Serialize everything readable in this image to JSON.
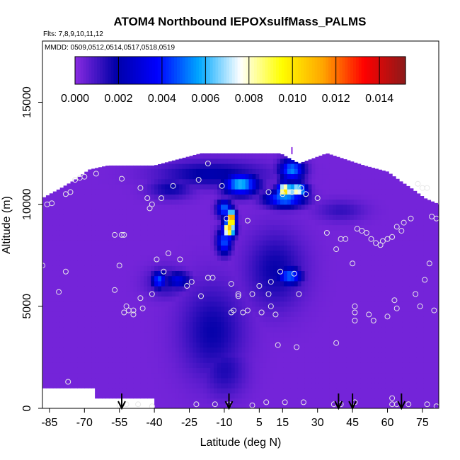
{
  "chart_data": {
    "type": "heatmap",
    "title": "ATOM4 Northbound IEPOXsulfMass_PALMS",
    "subtitle_flights": "Flts: 7,8,9,10,11,12",
    "subtitle_dates": "MMDD: 0509,0512,0514,0517,0518,0519",
    "xlabel": "Latitude (deg N)",
    "ylabel": "Altitude (m)",
    "xlim": [
      -88,
      82
    ],
    "ylim": [
      0,
      18000
    ],
    "xticks": [
      "-85",
      "-70",
      "-55",
      "-40",
      "-25",
      "-10",
      "5",
      "15",
      "30",
      "45",
      "60",
      "75"
    ],
    "xtick_values": [
      -85,
      -70,
      -55,
      -40,
      -25,
      -10,
      5,
      15,
      30,
      45,
      60,
      75
    ],
    "yticks": [
      "0",
      "5000",
      "10000",
      "15000"
    ],
    "ytick_values": [
      0,
      5000,
      10000,
      15000
    ],
    "colorbar": {
      "ticks": [
        "0.000",
        "0.002",
        "0.004",
        "0.006",
        "0.008",
        "0.010",
        "0.012",
        "0.014"
      ],
      "tick_values": [
        0.0,
        0.002,
        0.004,
        0.006,
        0.008,
        0.01,
        0.012,
        0.014
      ],
      "range": [
        0.0,
        0.0152
      ],
      "colors": [
        "#8a2be2",
        "#0000a8",
        "#0000ff",
        "#00a8ff",
        "#ffffff",
        "#ffff00",
        "#ffa500",
        "#ff0000",
        "#8b1a1a"
      ]
    },
    "background_value": 0.0003,
    "domain": [
      {
        "lat": -88,
        "top": 10300
      },
      {
        "lat": -80,
        "top": 10800
      },
      {
        "lat": -74,
        "top": 11200
      },
      {
        "lat": -68,
        "top": 11700
      },
      {
        "lat": -60,
        "top": 11900
      },
      {
        "lat": -40,
        "top": 11900
      },
      {
        "lat": -20,
        "top": 12500
      },
      {
        "lat": 14,
        "top": 12500
      },
      {
        "lat": 22,
        "top": 12000
      },
      {
        "lat": 34,
        "top": 12500
      },
      {
        "lat": 50,
        "top": 11900
      },
      {
        "lat": 60,
        "top": 11600
      },
      {
        "lat": 66,
        "top": 11100
      },
      {
        "lat": 70,
        "top": 10800
      },
      {
        "lat": 76,
        "top": 10300
      },
      {
        "lat": 82,
        "top": 10000
      }
    ],
    "domain_bottom": [
      {
        "lat": -88,
        "alt": 1000
      },
      {
        "lat": -66,
        "alt": 1000
      },
      {
        "lat": -66,
        "alt": 500
      },
      {
        "lat": -40,
        "alt": 500
      },
      {
        "lat": -40,
        "alt": 0
      },
      {
        "lat": 82,
        "alt": 0
      }
    ],
    "features": [
      {
        "lat": -15,
        "alt": 3800,
        "w_lat": 13,
        "h_alt": 2200,
        "value": 0.0018
      },
      {
        "lat": -10,
        "alt": 1900,
        "w_lat": 9,
        "h_alt": 1300,
        "value": 0.0015
      },
      {
        "lat": -15,
        "alt": 11500,
        "w_lat": 22,
        "h_alt": 600,
        "value": 0.0021
      },
      {
        "lat": -33,
        "alt": 10800,
        "w_lat": 9,
        "h_alt": 500,
        "value": 0.0018
      },
      {
        "lat": -3,
        "alt": 11000,
        "w_lat": 7,
        "h_alt": 500,
        "value": 0.0062
      },
      {
        "lat": 19,
        "alt": 11700,
        "w_lat": 5,
        "h_alt": 500,
        "value": 0.0054
      },
      {
        "lat": 16,
        "alt": 10700,
        "w_lat": 3,
        "h_alt": 350,
        "value": 0.0105
      },
      {
        "lat": 21,
        "alt": 10700,
        "w_lat": 4,
        "h_alt": 350,
        "value": 0.0085
      },
      {
        "lat": 16,
        "alt": 10300,
        "w_lat": 8,
        "h_alt": 400,
        "value": 0.0056
      },
      {
        "lat": -7,
        "alt": 9300,
        "w_lat": 1.8,
        "h_alt": 400,
        "value": 0.0138
      },
      {
        "lat": -8,
        "alt": 8800,
        "w_lat": 2.5,
        "h_alt": 400,
        "value": 0.0112
      },
      {
        "lat": -10,
        "alt": 8200,
        "w_lat": 3,
        "h_alt": 600,
        "value": 0.0048
      },
      {
        "lat": -10,
        "alt": 9800,
        "w_lat": 3,
        "h_alt": 400,
        "value": 0.0052
      },
      {
        "lat": 12,
        "alt": 6800,
        "w_lat": 12,
        "h_alt": 1800,
        "value": 0.0018
      },
      {
        "lat": 18,
        "alt": 6500,
        "w_lat": 5,
        "h_alt": 400,
        "value": 0.0052
      },
      {
        "lat": 40,
        "alt": 9700,
        "w_lat": 10,
        "h_alt": 500,
        "value": 0.0012
      },
      {
        "lat": -35,
        "alt": 6200,
        "w_lat": 8,
        "h_alt": 700,
        "value": 0.0016
      },
      {
        "lat": -38,
        "alt": 6300,
        "w_lat": 3,
        "h_alt": 400,
        "value": 0.0048
      },
      {
        "lat": -30,
        "alt": 6300,
        "w_lat": 5,
        "h_alt": 400,
        "value": 0.0032
      }
    ],
    "profile_points": [
      {
        "lat": -86,
        "alt": 10000
      },
      {
        "lat": -84,
        "alt": 10050
      },
      {
        "lat": -78,
        "alt": 10500
      },
      {
        "lat": -76,
        "alt": 10600
      },
      {
        "lat": -74,
        "alt": 11200
      },
      {
        "lat": -72,
        "alt": 11300
      },
      {
        "lat": -70,
        "alt": 11350
      },
      {
        "lat": -65,
        "alt": 11500
      },
      {
        "lat": -54,
        "alt": 11250
      },
      {
        "lat": -46,
        "alt": 10800
      },
      {
        "lat": -43,
        "alt": 10300
      },
      {
        "lat": -42,
        "alt": 9800
      },
      {
        "lat": -41,
        "alt": 10000
      },
      {
        "lat": -37,
        "alt": 10300
      },
      {
        "lat": -32,
        "alt": 10900
      },
      {
        "lat": -21,
        "alt": 11200
      },
      {
        "lat": -17,
        "alt": 12000
      },
      {
        "lat": -11,
        "alt": 10900
      },
      {
        "lat": -9,
        "alt": 9300
      },
      {
        "lat": 0,
        "alt": 9200
      },
      {
        "lat": 9,
        "alt": 10600
      },
      {
        "lat": 19,
        "alt": 10600
      },
      {
        "lat": 15,
        "alt": 10500
      },
      {
        "lat": 23,
        "alt": 10800
      },
      {
        "lat": 25,
        "alt": 10500
      },
      {
        "lat": 30,
        "alt": 10300
      },
      {
        "lat": 34,
        "alt": 8600
      },
      {
        "lat": 38,
        "alt": 7800
      },
      {
        "lat": 40,
        "alt": 8300
      },
      {
        "lat": 42,
        "alt": 8300
      },
      {
        "lat": 45,
        "alt": 7100
      },
      {
        "lat": 47,
        "alt": 8800
      },
      {
        "lat": 49,
        "alt": 8700
      },
      {
        "lat": 51,
        "alt": 8600
      },
      {
        "lat": 53,
        "alt": 8300
      },
      {
        "lat": 55,
        "alt": 8100
      },
      {
        "lat": 57,
        "alt": 8000
      },
      {
        "lat": 58,
        "alt": 8200
      },
      {
        "lat": 60,
        "alt": 8300
      },
      {
        "lat": 62,
        "alt": 8400
      },
      {
        "lat": 64,
        "alt": 8900
      },
      {
        "lat": 66,
        "alt": 8700
      },
      {
        "lat": 67,
        "alt": 9100
      },
      {
        "lat": 70,
        "alt": 9300
      },
      {
        "lat": 73,
        "alt": 11000
      },
      {
        "lat": 75,
        "alt": 10800
      },
      {
        "lat": 77,
        "alt": 10800
      },
      {
        "lat": 79,
        "alt": 9400
      },
      {
        "lat": 81,
        "alt": 9300
      },
      {
        "lat": 78,
        "alt": 7100
      },
      {
        "lat": 76,
        "alt": 6300
      },
      {
        "lat": 72,
        "alt": 5600
      },
      {
        "lat": 74,
        "alt": 5000
      },
      {
        "lat": 80,
        "alt": 4800
      },
      {
        "lat": 63,
        "alt": 5300
      },
      {
        "lat": 64,
        "alt": 4900
      },
      {
        "lat": 60,
        "alt": 4500
      },
      {
        "lat": 54,
        "alt": 4300
      },
      {
        "lat": 52,
        "alt": 4600
      },
      {
        "lat": 46,
        "alt": 4300
      },
      {
        "lat": 46,
        "alt": 4700
      },
      {
        "lat": 46,
        "alt": 5000
      },
      {
        "lat": 38,
        "alt": 3200
      },
      {
        "lat": 21,
        "alt": 3000
      },
      {
        "lat": 12,
        "alt": 4600
      },
      {
        "lat": 10,
        "alt": 5000
      },
      {
        "lat": 6,
        "alt": 4700
      },
      {
        "lat": 0,
        "alt": 4800
      },
      {
        "lat": -2,
        "alt": 4700
      },
      {
        "lat": -6,
        "alt": 4800
      },
      {
        "lat": -7,
        "alt": 4700
      },
      {
        "lat": 2,
        "alt": 5600
      },
      {
        "lat": 22,
        "alt": 5600
      },
      {
        "lat": 20,
        "alt": 6600
      },
      {
        "lat": 14,
        "alt": 6700
      },
      {
        "lat": 10,
        "alt": 6200
      },
      {
        "lat": 9,
        "alt": 5600
      },
      {
        "lat": 5,
        "alt": 6000
      },
      {
        "lat": -4,
        "alt": 5600
      },
      {
        "lat": -4,
        "alt": 5500
      },
      {
        "lat": -7,
        "alt": 6100
      },
      {
        "lat": -15,
        "alt": 6400
      },
      {
        "lat": -20,
        "alt": 5500
      },
      {
        "lat": -24,
        "alt": 6200
      },
      {
        "lat": -26,
        "alt": 6000
      },
      {
        "lat": -29,
        "alt": 7300
      },
      {
        "lat": -34,
        "alt": 7600
      },
      {
        "lat": -36,
        "alt": 6700
      },
      {
        "lat": -39,
        "alt": 7300
      },
      {
        "lat": -41,
        "alt": 5600
      },
      {
        "lat": -45,
        "alt": 4900
      },
      {
        "lat": -46,
        "alt": 5400
      },
      {
        "lat": -49,
        "alt": 4800
      },
      {
        "lat": -51,
        "alt": 4800
      },
      {
        "lat": -52,
        "alt": 5000
      },
      {
        "lat": -57,
        "alt": 5800
      },
      {
        "lat": -55,
        "alt": 7000
      },
      {
        "lat": -57,
        "alt": 8500
      },
      {
        "lat": -53,
        "alt": 8500
      },
      {
        "lat": -54,
        "alt": 8500
      },
      {
        "lat": -49,
        "alt": 4600
      },
      {
        "lat": -53,
        "alt": 4700
      },
      {
        "lat": -78,
        "alt": 6700
      },
      {
        "lat": -81,
        "alt": 5700
      },
      {
        "lat": -88,
        "alt": 7000
      },
      {
        "lat": -77,
        "alt": 1300
      },
      {
        "lat": -41,
        "alt": 100
      },
      {
        "lat": -47,
        "alt": 200
      },
      {
        "lat": -52,
        "alt": 200
      },
      {
        "lat": -55,
        "alt": 150
      },
      {
        "lat": -22,
        "alt": 200
      },
      {
        "lat": -14,
        "alt": 200
      },
      {
        "lat": -8,
        "alt": 200
      },
      {
        "lat": 2,
        "alt": 150
      },
      {
        "lat": 8,
        "alt": 300
      },
      {
        "lat": 16,
        "alt": 300
      },
      {
        "lat": 24,
        "alt": 300
      },
      {
        "lat": 37,
        "alt": 200
      },
      {
        "lat": 40,
        "alt": 200
      },
      {
        "lat": 46,
        "alt": 300
      },
      {
        "lat": 62,
        "alt": 500
      },
      {
        "lat": 62,
        "alt": 200
      },
      {
        "lat": 64,
        "alt": 200
      },
      {
        "lat": 69,
        "alt": 200
      },
      {
        "lat": 77,
        "alt": 200
      },
      {
        "lat": 81,
        "alt": 100
      },
      {
        "lat": -17,
        "alt": 6400
      },
      {
        "lat": 13,
        "alt": 3100
      }
    ],
    "arrows_lat": [
      -54,
      -8,
      39,
      45,
      66
    ],
    "marker_lat": 19,
    "marker_alt": 12800
  }
}
